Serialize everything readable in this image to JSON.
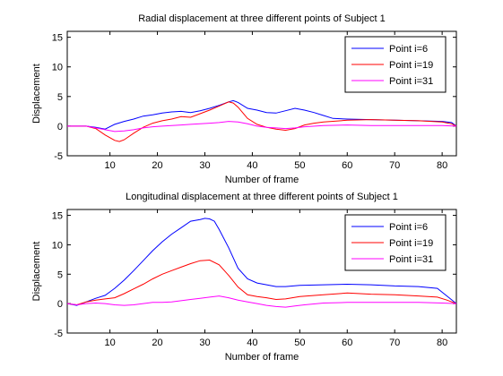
{
  "chart_data": [
    {
      "type": "line",
      "title": "Radial displacement at three different points of Subject 1",
      "xlabel": "Number of frame",
      "ylabel": "Displacement",
      "xlim": [
        1,
        83
      ],
      "ylim": [
        -5,
        16
      ],
      "xticks": [
        10,
        20,
        30,
        40,
        50,
        60,
        70,
        80
      ],
      "yticks": [
        -5,
        0,
        5,
        10,
        15
      ],
      "grid": false,
      "legend_position": "top-right",
      "series": [
        {
          "name": "Point i=6",
          "color": "#0000ff",
          "x": [
            1,
            3,
            5,
            7,
            9,
            11,
            13,
            15,
            17,
            19,
            21,
            23,
            25,
            27,
            29,
            31,
            33,
            35,
            36,
            37,
            39,
            41,
            43,
            45,
            47,
            49,
            51,
            53,
            55,
            57,
            60,
            65,
            70,
            75,
            80,
            82,
            83
          ],
          "y": [
            0,
            0,
            0,
            -0.2,
            -0.5,
            0.3,
            0.8,
            1.2,
            1.7,
            1.9,
            2.2,
            2.4,
            2.5,
            2.3,
            2.6,
            3.0,
            3.5,
            4.1,
            4.3,
            4.0,
            3.0,
            2.7,
            2.3,
            2.2,
            2.6,
            3.0,
            2.7,
            2.3,
            1.8,
            1.3,
            1.2,
            1.1,
            1.0,
            0.9,
            0.8,
            0.6,
            0.0
          ]
        },
        {
          "name": "Point i=19",
          "color": "#ff0000",
          "x": [
            1,
            3,
            5,
            7,
            9,
            11,
            12,
            13,
            15,
            17,
            19,
            21,
            23,
            25,
            27,
            29,
            31,
            33,
            35,
            36,
            37,
            39,
            41,
            43,
            45,
            47,
            49,
            51,
            53,
            55,
            60,
            65,
            70,
            75,
            80,
            82,
            83
          ],
          "y": [
            0,
            0,
            0,
            -0.4,
            -1.5,
            -2.4,
            -2.6,
            -2.3,
            -1.2,
            -0.2,
            0.5,
            0.9,
            1.2,
            1.6,
            1.5,
            2.1,
            2.7,
            3.4,
            4.1,
            3.9,
            3.2,
            1.3,
            0.3,
            -0.2,
            -0.5,
            -0.7,
            -0.4,
            0.2,
            0.5,
            0.7,
            1.0,
            1.1,
            1.0,
            0.9,
            0.7,
            0.4,
            0.0
          ]
        },
        {
          "name": "Point i=31",
          "color": "#ff00ff",
          "x": [
            1,
            3,
            5,
            7,
            9,
            11,
            13,
            15,
            17,
            19,
            21,
            23,
            25,
            27,
            29,
            31,
            33,
            35,
            37,
            39,
            41,
            43,
            45,
            47,
            49,
            51,
            55,
            60,
            65,
            70,
            75,
            80,
            83
          ],
          "y": [
            0,
            0,
            0,
            -0.3,
            -0.6,
            -0.9,
            -0.8,
            -0.6,
            -0.3,
            -0.1,
            0.0,
            0.1,
            0.2,
            0.3,
            0.4,
            0.5,
            0.6,
            0.8,
            0.7,
            0.4,
            0.0,
            -0.2,
            -0.3,
            -0.4,
            -0.3,
            -0.1,
            0.1,
            0.2,
            0.1,
            0.1,
            0.1,
            0.1,
            0.0
          ]
        }
      ]
    },
    {
      "type": "line",
      "title": "Longitudinal displacement at three different points of Subject 1",
      "xlabel": "Number of frame",
      "ylabel": "Displacement",
      "xlim": [
        1,
        83
      ],
      "ylim": [
        -5,
        16
      ],
      "xticks": [
        10,
        20,
        30,
        40,
        50,
        60,
        70,
        80
      ],
      "yticks": [
        -5,
        0,
        5,
        10,
        15
      ],
      "grid": false,
      "legend_position": "top-right",
      "series": [
        {
          "name": "Point i=6",
          "color": "#0000ff",
          "x": [
            1,
            3,
            5,
            7,
            9,
            11,
            13,
            15,
            17,
            19,
            21,
            23,
            25,
            27,
            29,
            30,
            31,
            32,
            33,
            35,
            37,
            39,
            41,
            43,
            45,
            47,
            50,
            55,
            60,
            65,
            70,
            75,
            79,
            81,
            83
          ],
          "y": [
            0,
            -0.3,
            0.3,
            0.9,
            1.4,
            2.6,
            4.0,
            5.6,
            7.3,
            9.0,
            10.5,
            11.8,
            12.9,
            14.0,
            14.3,
            14.5,
            14.4,
            14.0,
            12.6,
            9.5,
            6.0,
            4.2,
            3.5,
            3.2,
            2.9,
            2.9,
            3.1,
            3.2,
            3.3,
            3.2,
            3.0,
            2.9,
            2.6,
            1.3,
            0.0
          ]
        },
        {
          "name": "Point i=19",
          "color": "#ff0000",
          "x": [
            1,
            3,
            5,
            7,
            9,
            11,
            13,
            15,
            17,
            19,
            21,
            23,
            25,
            27,
            29,
            31,
            33,
            35,
            37,
            39,
            41,
            43,
            45,
            47,
            50,
            55,
            60,
            65,
            70,
            75,
            79,
            81,
            83
          ],
          "y": [
            0,
            -0.2,
            0.3,
            0.6,
            0.8,
            1.0,
            1.7,
            2.5,
            3.3,
            4.2,
            5.0,
            5.6,
            6.2,
            6.8,
            7.3,
            7.4,
            6.6,
            4.8,
            2.8,
            1.5,
            1.2,
            1.0,
            0.7,
            0.8,
            1.2,
            1.5,
            1.8,
            1.6,
            1.5,
            1.3,
            1.1,
            0.6,
            0.0
          ]
        },
        {
          "name": "Point i=31",
          "color": "#ff00ff",
          "x": [
            1,
            3,
            5,
            7,
            9,
            11,
            13,
            15,
            17,
            19,
            21,
            23,
            25,
            27,
            29,
            31,
            33,
            35,
            37,
            39,
            41,
            43,
            45,
            47,
            49,
            51,
            55,
            60,
            65,
            70,
            75,
            80,
            83
          ],
          "y": [
            0,
            -0.2,
            0.0,
            0.1,
            0.0,
            -0.2,
            -0.3,
            -0.2,
            0.0,
            0.2,
            0.2,
            0.3,
            0.5,
            0.7,
            0.9,
            1.1,
            1.3,
            1.0,
            0.6,
            0.3,
            0.0,
            -0.3,
            -0.5,
            -0.6,
            -0.4,
            -0.2,
            0.1,
            0.2,
            0.2,
            0.2,
            0.2,
            0.1,
            0.0
          ]
        }
      ]
    }
  ]
}
